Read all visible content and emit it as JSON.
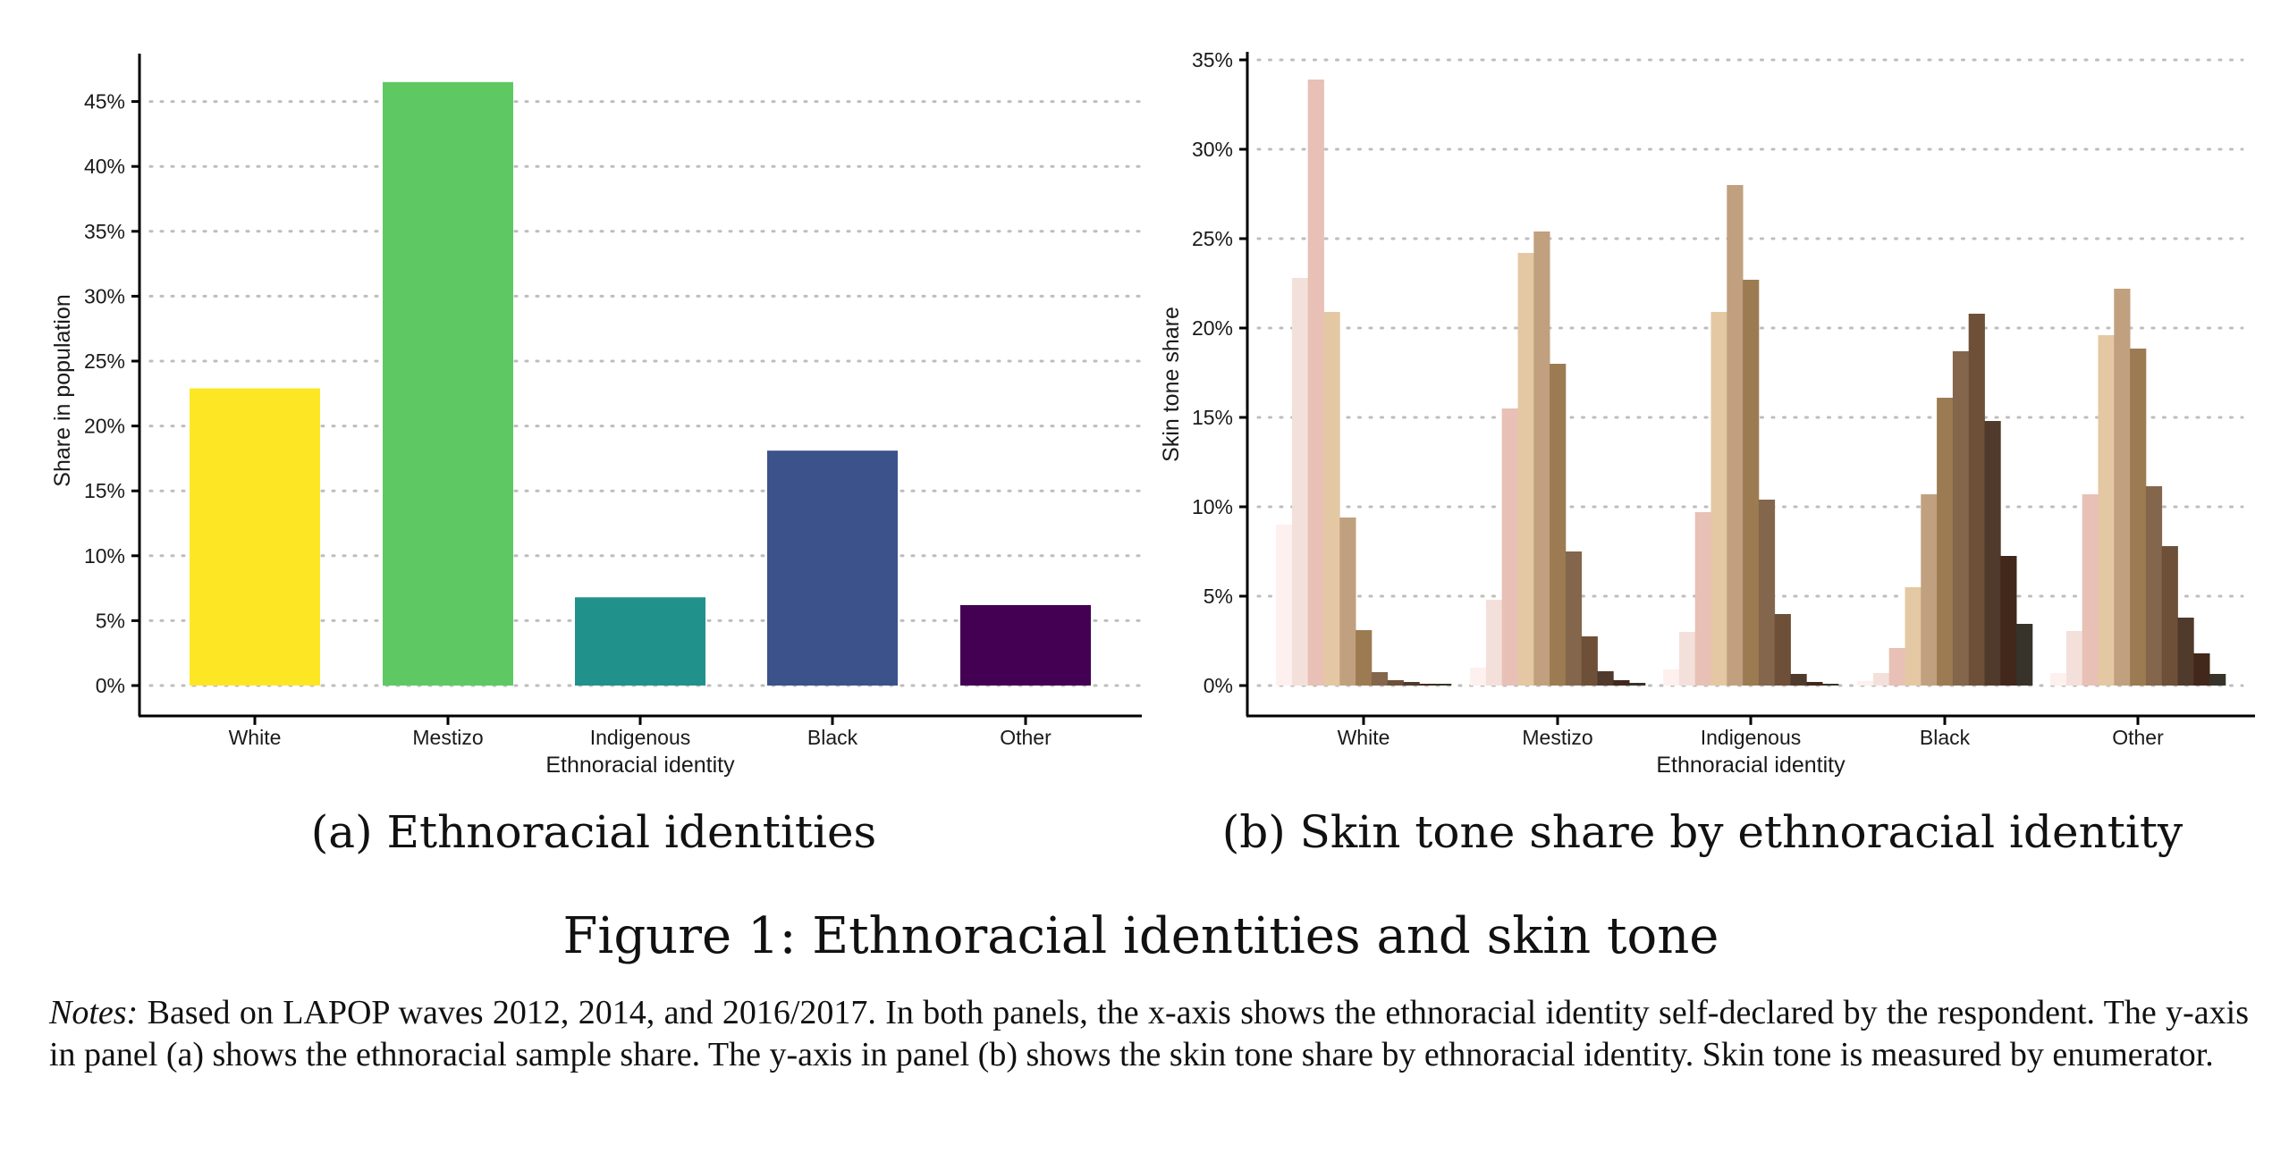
{
  "figure": {
    "title": "Figure 1: Ethnoracial identities and skin tone",
    "notes_label": "Notes:",
    "notes_text": "Based on LAPOP waves 2012, 2014, and 2016/2017. In both panels, the x-axis shows the ethnoracial identity self-declared by the respondent.  The y-axis in panel (a) shows the ethnoracial sample share.  The y-axis in panel (b) shows the skin tone share by ethnoracial identity. Skin tone is measured by enumerator."
  },
  "chart_data": [
    {
      "type": "bar",
      "panel": "a",
      "caption": "(a) Ethnoracial identities",
      "title": "",
      "xlabel": "Ethnoracial identity",
      "ylabel": "Share in population",
      "categories": [
        "White",
        "Mestizo",
        "Indigenous",
        "Black",
        "Other"
      ],
      "values": [
        22.9,
        46.5,
        6.8,
        18.1,
        6.2
      ],
      "colors": [
        "#fde725",
        "#5ec962",
        "#21918c",
        "#3b528b",
        "#440154"
      ],
      "yticks": [
        "0%",
        "5%",
        "10%",
        "15%",
        "20%",
        "25%",
        "30%",
        "35%",
        "40%",
        "45%"
      ],
      "ylim": [
        0,
        48
      ],
      "grid": "horizontal dotted",
      "legend": "none"
    },
    {
      "type": "bar",
      "panel": "b",
      "caption": "(b) Skin tone share by ethnoracial identity",
      "title": "",
      "xlabel": "Ethnoracial identity",
      "ylabel": "Skin tone share",
      "categories": [
        "White",
        "Mestizo",
        "Indigenous",
        "Black",
        "Other"
      ],
      "skin_tone_levels": [
        1,
        2,
        3,
        4,
        5,
        6,
        7,
        8,
        9,
        10,
        11
      ],
      "skin_tone_colors": [
        "#fdf0ee",
        "#f4e0da",
        "#e8c0b5",
        "#e4c8a3",
        "#c0a07e",
        "#9c7b52",
        "#84664c",
        "#6e5039",
        "#4f3a2c",
        "#42281a",
        "#38332a"
      ],
      "series": [
        {
          "name": "White",
          "values": [
            9.0,
            22.8,
            33.9,
            20.9,
            9.4,
            3.1,
            0.75,
            0.3,
            0.2,
            0.1,
            0.1
          ]
        },
        {
          "name": "Mestizo",
          "values": [
            1.0,
            4.8,
            15.5,
            24.2,
            25.4,
            18.0,
            7.5,
            2.75,
            0.8,
            0.3,
            0.15
          ]
        },
        {
          "name": "Indigenous",
          "values": [
            0.9,
            3.0,
            9.7,
            20.9,
            28.0,
            22.7,
            10.4,
            4.0,
            0.65,
            0.2,
            0.1
          ]
        },
        {
          "name": "Black",
          "values": [
            0.25,
            0.7,
            2.1,
            5.5,
            10.7,
            16.1,
            18.7,
            20.8,
            14.8,
            7.25,
            3.45
          ]
        },
        {
          "name": "Other",
          "values": [
            0.7,
            3.05,
            10.7,
            19.6,
            22.2,
            18.85,
            11.15,
            7.8,
            3.8,
            1.8,
            0.65
          ]
        }
      ],
      "yticks": [
        "0%",
        "5%",
        "10%",
        "15%",
        "20%",
        "25%",
        "30%",
        "35%"
      ],
      "ylim": [
        0,
        36
      ],
      "grid": "horizontal dotted",
      "legend": "none"
    }
  ]
}
